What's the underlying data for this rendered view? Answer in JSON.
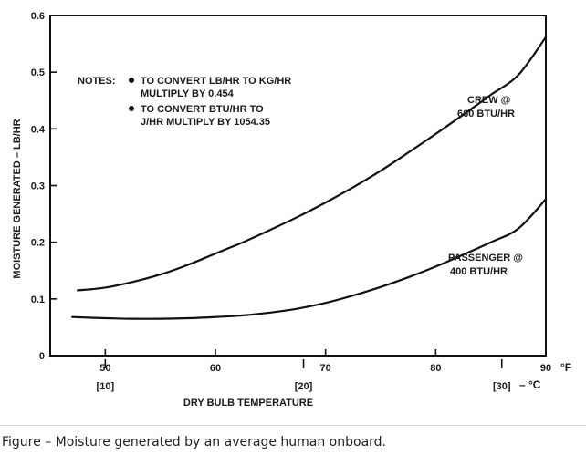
{
  "chart_data": {
    "type": "line",
    "ylabel": "MOISTURE GENERATED – LB/HR",
    "xlabel": "DRY BULB TEMPERATURE",
    "x_unit": "°F",
    "c_unit": "– °C",
    "xlim": [
      45,
      90
    ],
    "ylim": [
      0,
      0.6
    ],
    "x_ticks": [
      "50",
      "60",
      "70",
      "80",
      "90"
    ],
    "y_ticks": [
      "0",
      "0.1",
      "0.2",
      "0.3",
      "0.4",
      "0.5",
      "0.6"
    ],
    "celsius_ticks": [
      {
        "label": "[10]",
        "f": 50
      },
      {
        "label": "[20]",
        "f": 68
      },
      {
        "label": "[30]",
        "f": 86
      }
    ],
    "series": [
      {
        "name": "CREW @ 660 BTU/HR",
        "label_lines": [
          "CREW @",
          "660 BTU/HR"
        ],
        "x": [
          47.5,
          50,
          52.5,
          55,
          57.5,
          60,
          62.5,
          65,
          67.5,
          70,
          72.5,
          75,
          77.5,
          80,
          82.5,
          85,
          87.5,
          90
        ],
        "y": [
          0.115,
          0.12,
          0.13,
          0.143,
          0.16,
          0.18,
          0.2,
          0.222,
          0.245,
          0.27,
          0.297,
          0.326,
          0.358,
          0.391,
          0.425,
          0.46,
          0.495,
          0.562
        ]
      },
      {
        "name": "PASSENGER @ 400 BTU/HR",
        "label_lines": [
          "PASSENGER @",
          "400 BTU/HR"
        ],
        "x": [
          47,
          50,
          52.5,
          55,
          57.5,
          60,
          62.5,
          65,
          67.5,
          70,
          72.5,
          75,
          77.5,
          80,
          82.5,
          85,
          87.5,
          90
        ],
        "y": [
          0.068,
          0.066,
          0.065,
          0.065,
          0.066,
          0.068,
          0.071,
          0.076,
          0.083,
          0.093,
          0.106,
          0.121,
          0.138,
          0.157,
          0.178,
          0.2,
          0.224,
          0.276
        ]
      }
    ]
  },
  "notes": {
    "heading": "NOTES:",
    "items": [
      [
        "TO CONVERT LB/HR TO KG/HR",
        "MULTIPLY BY 0.454"
      ],
      [
        "TO CONVERT BTU/HR TO",
        "J/HR MULTIPLY BY 1054.35"
      ]
    ]
  },
  "caption": "Figure – Moisture generated by an average human onboard."
}
